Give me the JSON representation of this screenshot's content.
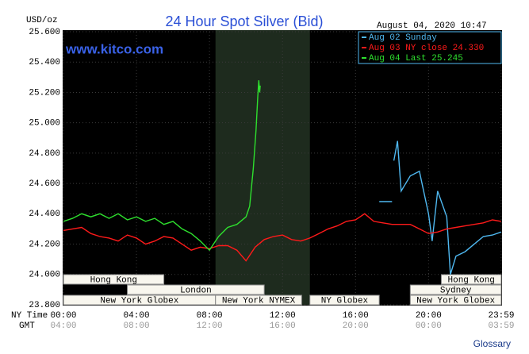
{
  "chart_data": {
    "type": "line",
    "title": "24 Hour Spot Silver (Bid)",
    "unit": "USD/oz",
    "timestamp": "August 04, 2020 10:47",
    "watermark": "www.kitco.com",
    "xlabel": "NY Time",
    "x2label": "GMT",
    "xlim": [
      0,
      23.983
    ],
    "xticks": [
      {
        "value": 0,
        "label": "00:00"
      },
      {
        "value": 4,
        "label": "04:00"
      },
      {
        "value": 8,
        "label": "08:00"
      },
      {
        "value": 12,
        "label": "12:00"
      },
      {
        "value": 16,
        "label": "16:00"
      },
      {
        "value": 20,
        "label": "20:00"
      },
      {
        "value": 23.983,
        "label": "23:59"
      }
    ],
    "x2ticks": [
      {
        "value": 0,
        "label": "04:00"
      },
      {
        "value": 4,
        "label": "08:00"
      },
      {
        "value": 8,
        "label": "12:00"
      },
      {
        "value": 12,
        "label": "16:00"
      },
      {
        "value": 16,
        "label": "20:00"
      },
      {
        "value": 20,
        "label": "00:00"
      },
      {
        "value": 23.983,
        "label": "03:59"
      }
    ],
    "ylim": [
      23.8,
      25.6
    ],
    "yticks": [
      {
        "value": 23.8,
        "label": "23.800"
      },
      {
        "value": 24.0,
        "label": "24.000"
      },
      {
        "value": 24.2,
        "label": "24.200"
      },
      {
        "value": 24.4,
        "label": "24.400"
      },
      {
        "value": 24.6,
        "label": "24.600"
      },
      {
        "value": 24.8,
        "label": "24.800"
      },
      {
        "value": 25.0,
        "label": "25.000"
      },
      {
        "value": 25.2,
        "label": "25.200"
      },
      {
        "value": 25.4,
        "label": "25.400"
      },
      {
        "value": 25.6,
        "label": "25.600"
      }
    ],
    "grid": true,
    "legend": "top-right",
    "shade": [
      8.33,
      13.5
    ],
    "series": [
      {
        "name": "Aug 02 Sunday",
        "color": "#4fb8f0",
        "x": [
          17.3,
          18.0,
          18.05,
          18.1,
          18.3,
          18.5,
          19,
          19.5,
          20,
          20.2,
          20.5,
          21,
          21.2,
          21.5,
          22,
          22.5,
          23,
          23.5,
          23.98
        ],
        "values": [
          24.48,
          24.48,
          null,
          24.75,
          24.88,
          24.55,
          24.65,
          24.68,
          24.4,
          24.22,
          24.55,
          24.38,
          24.0,
          24.12,
          24.15,
          24.2,
          24.25,
          24.26,
          24.28
        ]
      },
      {
        "name": "Aug 03 NY close 24.330",
        "color": "#ff1a1a",
        "x": [
          0,
          0.5,
          1,
          1.5,
          2,
          2.5,
          3,
          3.5,
          4,
          4.5,
          5,
          5.5,
          6,
          6.5,
          7,
          7.5,
          8,
          8.5,
          9,
          9.5,
          10,
          10.5,
          11,
          11.5,
          12,
          12.5,
          13,
          13.5,
          14,
          14.5,
          15,
          15.5,
          16,
          16.5,
          17,
          17.5,
          18,
          18.5,
          19,
          19.5,
          20,
          20.5,
          21,
          21.5,
          22,
          22.5,
          23,
          23.5,
          23.98
        ],
        "values": [
          24.29,
          24.3,
          24.31,
          24.27,
          24.25,
          24.24,
          24.22,
          24.26,
          24.24,
          24.2,
          24.22,
          24.25,
          24.24,
          24.2,
          24.16,
          24.18,
          24.17,
          24.19,
          24.19,
          24.16,
          24.09,
          24.18,
          24.23,
          24.25,
          24.26,
          24.23,
          24.22,
          24.24,
          24.27,
          24.3,
          24.32,
          24.35,
          24.36,
          24.4,
          24.35,
          24.34,
          24.33,
          24.33,
          24.33,
          24.3,
          24.27,
          24.28,
          24.3,
          24.31,
          24.32,
          24.33,
          24.34,
          24.36,
          24.35
        ]
      },
      {
        "name": "Aug 04 Last 25.245",
        "color": "#2ee02e",
        "x": [
          0,
          0.5,
          1,
          1.5,
          2,
          2.5,
          3,
          3.5,
          4,
          4.5,
          5,
          5.5,
          6,
          6.5,
          7,
          7.5,
          8,
          8.5,
          9,
          9.5,
          10,
          10.2,
          10.4,
          10.55,
          10.65,
          10.7,
          10.75,
          10.78
        ],
        "values": [
          24.35,
          24.37,
          24.4,
          24.38,
          24.4,
          24.37,
          24.4,
          24.36,
          24.38,
          24.35,
          24.37,
          24.33,
          24.35,
          24.3,
          24.27,
          24.22,
          24.16,
          24.25,
          24.31,
          24.33,
          24.38,
          24.45,
          24.7,
          24.95,
          25.18,
          25.28,
          25.2,
          25.245
        ]
      }
    ],
    "sessions": [
      {
        "label": "Hong Kong",
        "start": 0,
        "end": 5.5,
        "row": 0
      },
      {
        "label": "London",
        "start": 3.5,
        "end": 11,
        "row": 1
      },
      {
        "label": "New York Globex",
        "start": 0,
        "end": 8.33,
        "row": 2
      },
      {
        "label": "New York NYMEX",
        "start": 8.33,
        "end": 13.05,
        "row": 2
      },
      {
        "label": "NY Globex",
        "start": 13.5,
        "end": 17.3,
        "row": 2
      },
      {
        "label": "Sydney",
        "start": 19,
        "end": 23.983,
        "row": 1
      },
      {
        "label": "Hong Kong",
        "start": 20.7,
        "end": 23.983,
        "row": 0
      },
      {
        "label": "New York Globex",
        "start": 19,
        "end": 23.983,
        "row": 2
      }
    ]
  },
  "links": {
    "glossary": "Glossary"
  }
}
